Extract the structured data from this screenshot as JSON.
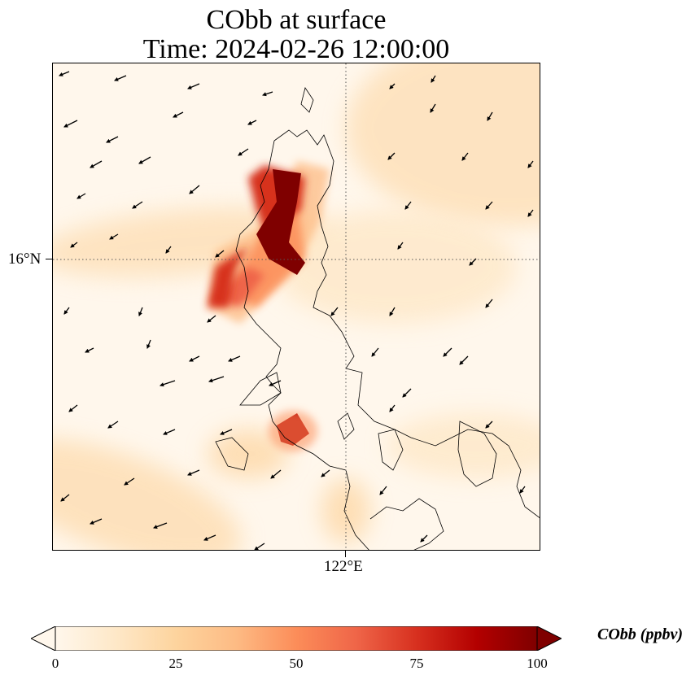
{
  "title": {
    "line1": "CObb at surface",
    "line2": "Time: 2024-02-26 12:00:00"
  },
  "axes": {
    "lat_tick": "16°N",
    "lon_tick": "122°E",
    "gridlines": "dotted"
  },
  "colorbar": {
    "label": "CObb (ppbv)",
    "ticks": [
      "0",
      "25",
      "50",
      "75",
      "100"
    ],
    "range": [
      0,
      100
    ],
    "extend": "both",
    "colormap": [
      "#fff7ec",
      "#fee8c8",
      "#fdd49e",
      "#fdbb84",
      "#fc8d59",
      "#ef6548",
      "#d7301f",
      "#b30000",
      "#7f0000"
    ]
  },
  "map": {
    "field": "CObb",
    "level": "surface",
    "wind_vectors": "shown",
    "coastlines": "shown"
  }
}
